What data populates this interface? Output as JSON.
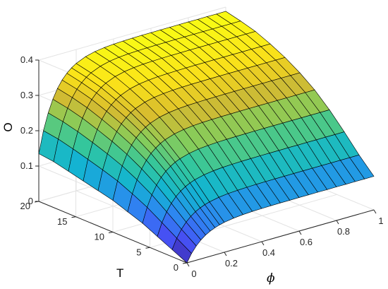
{
  "chart_data": {
    "type": "surface",
    "xlabel": "ϕ",
    "ylabel": "T",
    "zlabel": "O",
    "xlim": [
      0,
      1
    ],
    "ylim": [
      0,
      20
    ],
    "zlim": [
      0,
      0.4
    ],
    "xticks": [
      "0",
      "0.2",
      "0.4",
      "0.6",
      "0.8",
      "1"
    ],
    "yticks": [
      "0",
      "5",
      "10",
      "15",
      "20"
    ],
    "zticks": [
      "0",
      "0.1",
      "0.2",
      "0.3",
      "0.4"
    ],
    "grid": true,
    "colormap": "parula",
    "colormap_colors": [
      "#3e26a8",
      "#4653f7",
      "#2c89f0",
      "#13b4d1",
      "#31c69f",
      "#86cc5a",
      "#d6ba30",
      "#fbe319",
      "#f9fb15"
    ],
    "phi": [
      0.0,
      0.025,
      0.05,
      0.075,
      0.1,
      0.125,
      0.15,
      0.175,
      0.2,
      0.25,
      0.3,
      0.35,
      0.4,
      0.45,
      0.5,
      0.55,
      0.6,
      0.65,
      0.7,
      0.75,
      0.8,
      0.85,
      0.9,
      0.95,
      1.0
    ],
    "T": [
      0,
      2,
      4,
      6,
      8,
      10,
      12,
      14,
      16,
      18,
      20
    ],
    "z_edge_phi0": [
      0.0,
      0.02,
      0.04,
      0.06,
      0.075,
      0.09,
      0.1,
      0.11,
      0.12,
      0.13,
      0.135
    ],
    "z_edge_phi1": [
      0.095,
      0.138,
      0.186,
      0.231,
      0.27,
      0.301,
      0.327,
      0.348,
      0.366,
      0.378,
      0.388
    ]
  }
}
